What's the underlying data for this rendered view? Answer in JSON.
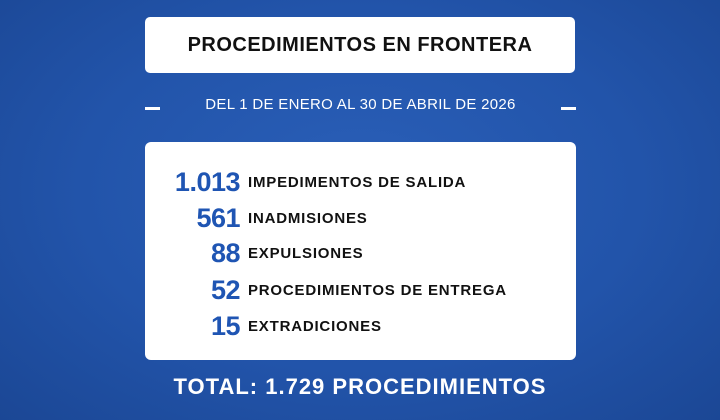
{
  "header": {
    "title": "PROCEDIMIENTOS EN FRONTERA",
    "subtitle": "DEL 1 DE ENERO AL 30 DE ABRIL DE 2026"
  },
  "items": [
    {
      "value": "1.013",
      "label": "IMPEDIMENTOS DE SALIDA"
    },
    {
      "value": "561",
      "label": "INADMISIONES"
    },
    {
      "value": "88",
      "label": "EXPULSIONES"
    },
    {
      "value": "52",
      "label": "PROCEDIMIENTOS DE ENTREGA"
    },
    {
      "value": "15",
      "label": "EXTRADICIONES"
    }
  ],
  "total": "TOTAL: 1.729 PROCEDIMIENTOS"
}
